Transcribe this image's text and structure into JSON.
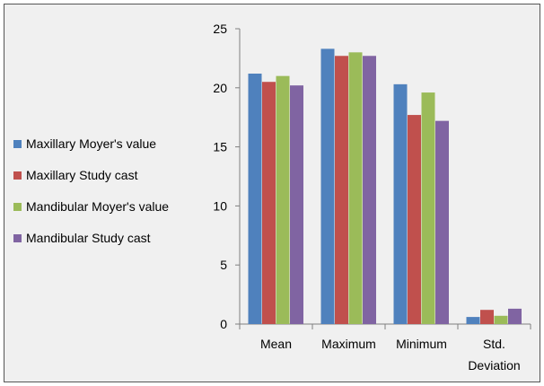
{
  "chart_data": {
    "type": "bar",
    "categories": [
      "Mean",
      "Maximum",
      "Minimum",
      "Std. Deviation"
    ],
    "category_label_lines": [
      [
        "Mean"
      ],
      [
        "Maximum"
      ],
      [
        "Minimum"
      ],
      [
        "Std.",
        "Deviation"
      ]
    ],
    "series": [
      {
        "name": "Maxillary Moyer's value",
        "color": "#4f81bd",
        "values": [
          21.2,
          23.3,
          20.3,
          0.6
        ]
      },
      {
        "name": "Maxillary Study cast",
        "color": "#c0504d",
        "values": [
          20.5,
          22.7,
          17.7,
          1.2
        ]
      },
      {
        "name": "Mandibular Moyer's value",
        "color": "#9bbb59",
        "values": [
          21.0,
          23.0,
          19.6,
          0.7
        ]
      },
      {
        "name": "Mandibular Study cast",
        "color": "#8064a2",
        "values": [
          20.2,
          22.7,
          17.2,
          1.3
        ]
      }
    ],
    "ylim": [
      0,
      25
    ],
    "y_ticks": [
      0,
      5,
      10,
      15,
      20,
      25
    ],
    "grid": false,
    "legend_position": "left",
    "title": "",
    "xlabel": "",
    "ylabel": ""
  }
}
